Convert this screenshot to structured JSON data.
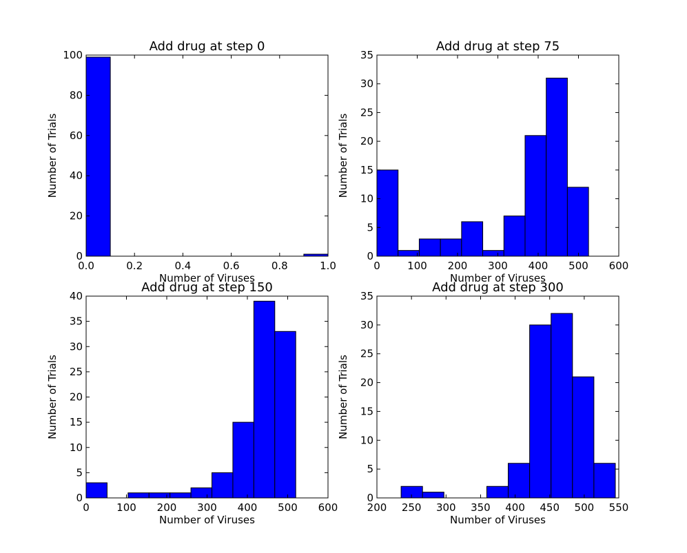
{
  "chart_data": [
    {
      "type": "bar",
      "title": "Add drug at step 0",
      "xlabel": "Number of Viruses",
      "ylabel": "Number of Trials",
      "xlim": [
        0,
        1
      ],
      "ylim": [
        0,
        100
      ],
      "xticks": [
        0,
        0.2,
        0.4,
        0.6,
        0.8,
        1.0
      ],
      "xtick_labels": [
        "0.0",
        "0.2",
        "0.4",
        "0.6",
        "0.8",
        "1.0"
      ],
      "yticks": [
        0,
        20,
        40,
        60,
        80,
        100
      ],
      "ytick_labels": [
        "0",
        "20",
        "40",
        "60",
        "80",
        "100"
      ],
      "bin_edges": [
        0,
        0.1,
        0.2,
        0.3,
        0.4,
        0.5,
        0.6,
        0.7,
        0.8,
        0.9,
        1.0
      ],
      "counts": [
        99,
        0,
        0,
        0,
        0,
        0,
        0,
        0,
        0,
        1
      ],
      "grid": false
    },
    {
      "type": "bar",
      "title": "Add drug at step 75",
      "xlabel": "Number of Viruses",
      "ylabel": "Number of Trials",
      "xlim": [
        0,
        600
      ],
      "ylim": [
        0,
        35
      ],
      "xticks": [
        0,
        100,
        200,
        300,
        400,
        500,
        600
      ],
      "xtick_labels": [
        "0",
        "100",
        "200",
        "300",
        "400",
        "500",
        "600"
      ],
      "yticks": [
        0,
        5,
        10,
        15,
        20,
        25,
        30,
        35
      ],
      "ytick_labels": [
        "0",
        "5",
        "10",
        "15",
        "20",
        "25",
        "30",
        "35"
      ],
      "bin_edges": [
        0,
        52.5,
        105,
        157.5,
        210,
        262.5,
        315,
        367.5,
        420,
        472.5,
        525
      ],
      "counts": [
        15,
        1,
        3,
        3,
        6,
        1,
        7,
        21,
        31,
        12
      ],
      "grid": false
    },
    {
      "type": "bar",
      "title": "Add drug at step 150",
      "xlabel": "Number of Viruses",
      "ylabel": "Number of Trials",
      "xlim": [
        0,
        600
      ],
      "ylim": [
        0,
        40
      ],
      "xticks": [
        0,
        100,
        200,
        300,
        400,
        500,
        600
      ],
      "xtick_labels": [
        "0",
        "100",
        "200",
        "300",
        "400",
        "500",
        "600"
      ],
      "yticks": [
        0,
        5,
        10,
        15,
        20,
        25,
        30,
        35,
        40
      ],
      "ytick_labels": [
        "0",
        "5",
        "10",
        "15",
        "20",
        "25",
        "30",
        "35",
        "40"
      ],
      "bin_edges": [
        0,
        52,
        104,
        156,
        208,
        260,
        312,
        364,
        416,
        468,
        520
      ],
      "counts": [
        3,
        0,
        1,
        1,
        1,
        2,
        5,
        15,
        39,
        33
      ],
      "grid": false
    },
    {
      "type": "bar",
      "title": "Add drug at step 300",
      "xlabel": "Number of Viruses",
      "ylabel": "Number of Trials",
      "xlim": [
        200,
        550
      ],
      "ylim": [
        0,
        35
      ],
      "xticks": [
        200,
        250,
        300,
        350,
        400,
        450,
        500,
        550
      ],
      "xtick_labels": [
        "200",
        "250",
        "300",
        "350",
        "400",
        "450",
        "500",
        "550"
      ],
      "yticks": [
        0,
        5,
        10,
        15,
        20,
        25,
        30,
        35
      ],
      "ytick_labels": [
        "0",
        "5",
        "10",
        "15",
        "20",
        "25",
        "30",
        "35"
      ],
      "bin_edges": [
        235,
        266,
        297,
        328,
        359,
        390,
        421,
        452,
        483,
        514,
        545
      ],
      "counts": [
        2,
        1,
        0,
        0,
        2,
        6,
        30,
        32,
        21,
        6
      ],
      "grid": false
    }
  ]
}
